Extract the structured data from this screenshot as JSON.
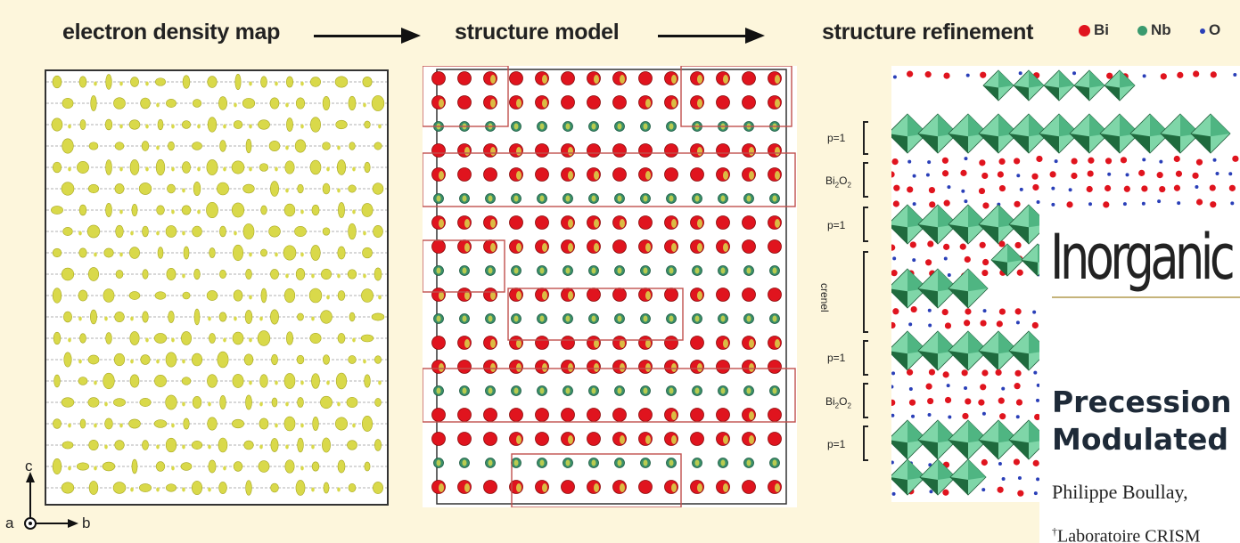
{
  "header": {
    "label1": "electron density map",
    "label2": "structure model",
    "label3": "structure refinement"
  },
  "legend": [
    {
      "symbol": "Bi",
      "color": "#e0141e"
    },
    {
      "symbol": "Nb",
      "color": "#3a9a6e"
    },
    {
      "symbol": "O",
      "color": "#2a3fb8"
    }
  ],
  "side_labels": [
    "p=1",
    "Bi2O2",
    "p=1",
    "crenel",
    "p=1",
    "Bi2O2",
    "p=1"
  ],
  "axes": {
    "c": "c",
    "a": "a",
    "b": "b"
  },
  "journal": {
    "title": "Inorganic"
  },
  "article": {
    "title_line1": "Precession",
    "title_line2": "Modulated",
    "authors": "Philippe Boullay,",
    "affiliation_mark": "†",
    "affiliation": "Laboratoire CRISM"
  },
  "colors": {
    "density": "#d9d94a",
    "bi": "#e0141e",
    "nb": "#3a8f6a",
    "o": "#2a3fb8",
    "box": "#c0504d",
    "octa_light": "#7fd6a8",
    "octa_dark": "#1f6b3e"
  }
}
